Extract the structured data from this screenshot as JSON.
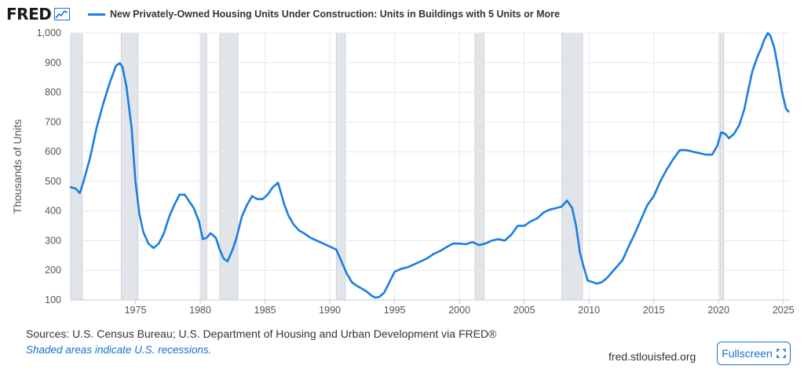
{
  "header": {
    "logo_text": "FRED",
    "legend_label": "New Privately-Owned Housing Units Under Construction: Units in Buildings with 5 Units or More"
  },
  "colors": {
    "series": "#1a7ee0",
    "recession": "#e1e5ea",
    "grid": "#e3e7ec",
    "link": "#1a6fcf"
  },
  "icons": {
    "logo": "line-chart-icon",
    "fullscreen": "expand-icon"
  },
  "chart_data": {
    "type": "line",
    "title": "New Privately-Owned Housing Units Under Construction: Units in Buildings with 5 Units or More",
    "xlabel": "",
    "ylabel": "Thousands of Units",
    "xlim": [
      1970.0,
      2025.5
    ],
    "ylim": [
      100,
      1000
    ],
    "yticks": [
      100,
      200,
      300,
      400,
      500,
      600,
      700,
      800,
      900,
      1000
    ],
    "ytick_labels": [
      "100",
      "200",
      "300",
      "400",
      "500",
      "600",
      "700",
      "800",
      "900",
      "1,000"
    ],
    "xticks": [
      1975,
      1980,
      1985,
      1990,
      1995,
      2000,
      2005,
      2010,
      2015,
      2020,
      2025
    ],
    "xtick_labels": [
      "1975",
      "1980",
      "1985",
      "1990",
      "1995",
      "2000",
      "2005",
      "2010",
      "2015",
      "2020",
      "2025"
    ],
    "grid": true,
    "recessions": [
      [
        1969.9,
        1970.9
      ],
      [
        1973.9,
        1975.2
      ],
      [
        1980.0,
        1980.5
      ],
      [
        1981.5,
        1982.9
      ],
      [
        1990.5,
        1991.2
      ],
      [
        2001.2,
        2001.9
      ],
      [
        2007.9,
        2009.5
      ],
      [
        2020.1,
        2020.4
      ]
    ],
    "series": [
      {
        "name": "Units in Buildings with 5 Units or More",
        "x": [
          1970.0,
          1970.4,
          1970.7,
          1971.0,
          1971.5,
          1972.0,
          1972.5,
          1973.0,
          1973.5,
          1973.8,
          1974.0,
          1974.3,
          1974.7,
          1975.0,
          1975.3,
          1975.6,
          1976.0,
          1976.4,
          1976.8,
          1977.2,
          1977.6,
          1978.0,
          1978.4,
          1978.8,
          1979.1,
          1979.5,
          1979.9,
          1980.2,
          1980.5,
          1980.8,
          1981.2,
          1981.5,
          1981.8,
          1982.1,
          1982.5,
          1982.8,
          1983.2,
          1983.6,
          1984.0,
          1984.4,
          1984.8,
          1985.2,
          1985.6,
          1986.0,
          1986.2,
          1986.5,
          1986.8,
          1987.2,
          1987.6,
          1988.0,
          1988.5,
          1989.0,
          1989.5,
          1990.0,
          1990.5,
          1990.9,
          1991.3,
          1991.7,
          1992.0,
          1992.4,
          1992.8,
          1993.2,
          1993.5,
          1993.8,
          1994.2,
          1994.6,
          1995.0,
          1995.5,
          1996.0,
          1996.5,
          1997.0,
          1997.5,
          1998.0,
          1998.5,
          1999.0,
          1999.5,
          2000.0,
          2000.5,
          2001.0,
          2001.5,
          2002.0,
          2002.5,
          2003.0,
          2003.5,
          2004.0,
          2004.5,
          2005.0,
          2005.5,
          2006.0,
          2006.5,
          2007.0,
          2007.5,
          2007.9,
          2008.3,
          2008.7,
          2009.0,
          2009.3,
          2009.6,
          2009.9,
          2010.3,
          2010.6,
          2011.0,
          2011.4,
          2011.8,
          2012.2,
          2012.6,
          2013.0,
          2013.5,
          2014.0,
          2014.5,
          2015.0,
          2015.5,
          2016.0,
          2016.5,
          2017.0,
          2017.5,
          2018.0,
          2018.5,
          2019.0,
          2019.5,
          2019.9,
          2020.2,
          2020.5,
          2020.8,
          2021.2,
          2021.6,
          2022.0,
          2022.3,
          2022.6,
          2023.0,
          2023.3,
          2023.5,
          2023.8,
          2024.0,
          2024.3,
          2024.6,
          2024.9,
          2025.2,
          2025.4
        ],
        "values": [
          480,
          475,
          460,
          500,
          580,
          680,
          760,
          830,
          890,
          898,
          885,
          820,
          680,
          500,
          390,
          330,
          290,
          275,
          290,
          325,
          380,
          420,
          455,
          455,
          435,
          410,
          365,
          305,
          310,
          325,
          310,
          270,
          240,
          230,
          270,
          310,
          380,
          420,
          450,
          440,
          440,
          455,
          480,
          495,
          465,
          420,
          385,
          355,
          335,
          325,
          310,
          300,
          290,
          280,
          270,
          230,
          190,
          160,
          150,
          140,
          130,
          115,
          108,
          110,
          125,
          160,
          195,
          205,
          210,
          220,
          230,
          240,
          255,
          265,
          278,
          290,
          290,
          288,
          295,
          285,
          290,
          300,
          305,
          300,
          320,
          350,
          350,
          365,
          375,
          395,
          405,
          410,
          415,
          435,
          410,
          350,
          260,
          210,
          165,
          160,
          155,
          160,
          175,
          195,
          215,
          235,
          275,
          320,
          370,
          420,
          450,
          500,
          540,
          575,
          605,
          605,
          600,
          595,
          590,
          590,
          620,
          665,
          660,
          645,
          660,
          690,
          745,
          810,
          870,
          920,
          950,
          975,
          1000,
          990,
          950,
          880,
          800,
          745,
          735
        ]
      }
    ]
  },
  "footer": {
    "sources": "Sources: U.S. Census Bureau; U.S. Department of Housing and Urban Development via FRED®",
    "note": "Shaded areas indicate U.S. recessions.",
    "site": "fred.stlouisfed.org",
    "fullscreen_label": "Fullscreen"
  }
}
